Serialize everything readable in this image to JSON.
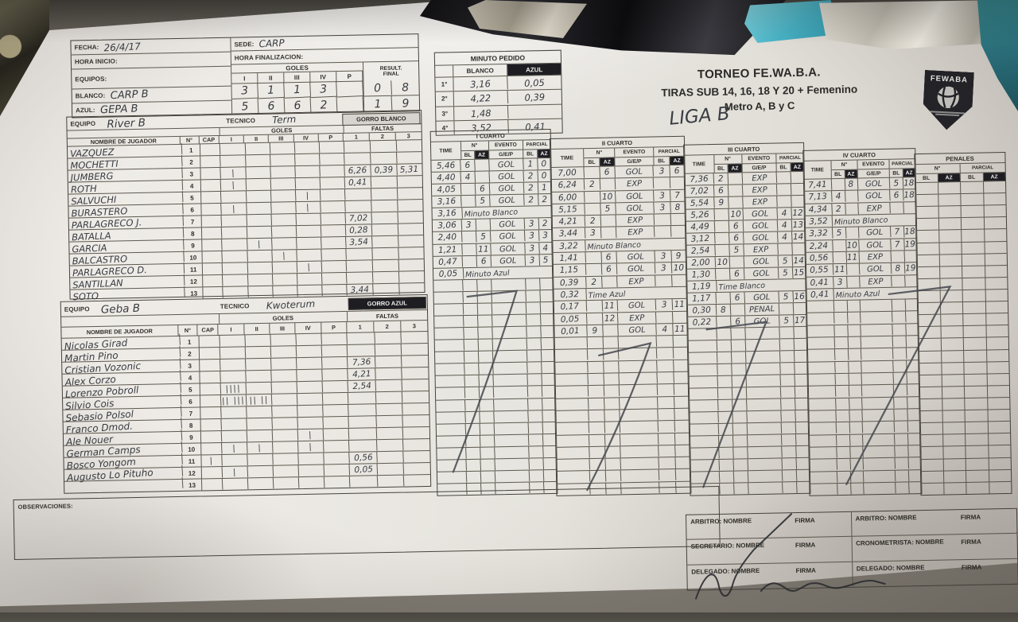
{
  "header": {
    "fecha_label": "FECHA:",
    "fecha": "26/4/17",
    "sede_label": "SEDE:",
    "sede": "CARP",
    "hora_inicio_label": "HORA INICIO:",
    "hora_fin_label": "HORA FINALIZACION:",
    "equipos_label": "EQUIPOS:",
    "goles_label": "GOLES",
    "result_label_1": "RESULT.",
    "result_label_2": "FINAL",
    "blanco_label": "BLANCO:",
    "azul_label": "AZUL:",
    "blanco_team": "CARP B",
    "azul_team": "GEPA B",
    "quarter_cols": [
      "I",
      "II",
      "III",
      "IV",
      "P"
    ],
    "blanco_goles": [
      "3",
      "1",
      "1",
      "3",
      ""
    ],
    "azul_goles": [
      "5",
      "6",
      "6",
      "2",
      ""
    ],
    "blanco_final": [
      "0",
      "8"
    ],
    "azul_final": [
      "1",
      "9"
    ]
  },
  "minuto_pedido": {
    "title": "MINUTO PEDIDO",
    "cols": [
      "BLANCO",
      "AZUL"
    ],
    "rows": [
      {
        "label": "1°",
        "blanco": "3,16",
        "azul": "0,05"
      },
      {
        "label": "2°",
        "blanco": "4,22",
        "azul": "0,39"
      },
      {
        "label": "3°",
        "blanco": "1,48",
        "azul": ""
      },
      {
        "label": "4°",
        "blanco": "3,52",
        "azul": "0,41"
      }
    ]
  },
  "title": {
    "line1": "TORNEO FE.WA.B.A.",
    "line2": "TIRAS SUB 14, 16, 18 Y 20 + Femenino",
    "line3": "Metro A, B y C",
    "handwritten": "LIGA B",
    "logo": "FEWABA"
  },
  "teams": [
    {
      "equipo_label": "EQUIPO",
      "equipo": "River B",
      "tecnico_label": "TECNICO",
      "tecnico": "Term",
      "gorro": "GORRO BLANCO",
      "goles_label": "GOLES",
      "faltas_label": "FALTAS",
      "headers": {
        "cols": [
          "NOMBRE DE JUGADOR",
          "N°",
          "CAP",
          "I",
          "II",
          "III",
          "IV",
          "P",
          "1",
          "2",
          "3"
        ]
      },
      "players": [
        {
          "n": "1",
          "name": "VAZQUEZ",
          "cap": "",
          "goles": [
            "",
            "",
            "",
            "",
            ""
          ],
          "faltas": [
            "",
            "",
            ""
          ]
        },
        {
          "n": "2",
          "name": "MOCHETTI",
          "cap": "",
          "goles": [
            "",
            "",
            "",
            "",
            ""
          ],
          "faltas": [
            "",
            "",
            ""
          ]
        },
        {
          "n": "3",
          "name": "JUMBERG",
          "cap": "",
          "goles": [
            "|",
            "",
            "",
            "",
            ""
          ],
          "faltas": [
            "6,26",
            "0,39",
            "5,31"
          ]
        },
        {
          "n": "4",
          "name": "ROTH",
          "cap": "",
          "goles": [
            "|",
            "",
            "",
            "",
            ""
          ],
          "faltas": [
            "0,41",
            "",
            ""
          ]
        },
        {
          "n": "5",
          "name": "SALVUCHI",
          "cap": "",
          "goles": [
            "",
            "",
            "",
            "|",
            ""
          ],
          "faltas": [
            "",
            "",
            ""
          ]
        },
        {
          "n": "6",
          "name": "BURASTERO",
          "cap": "",
          "goles": [
            "|",
            "",
            "",
            "|",
            ""
          ],
          "faltas": [
            "",
            "",
            ""
          ]
        },
        {
          "n": "7",
          "name": "PARLAGRECO J.",
          "cap": "",
          "goles": [
            "",
            "",
            "",
            "",
            ""
          ],
          "faltas": [
            "7,02",
            "",
            ""
          ]
        },
        {
          "n": "8",
          "name": "BATALLA",
          "cap": "",
          "goles": [
            "",
            "",
            "",
            "",
            ""
          ],
          "faltas": [
            "0,28",
            "",
            ""
          ]
        },
        {
          "n": "9",
          "name": "GARCIA",
          "cap": "",
          "goles": [
            "",
            "|",
            "",
            "",
            ""
          ],
          "faltas": [
            "3,54",
            "",
            ""
          ]
        },
        {
          "n": "10",
          "name": "BALCASTRO",
          "cap": "",
          "goles": [
            "",
            "",
            "|",
            "",
            ""
          ],
          "faltas": [
            "",
            "",
            ""
          ]
        },
        {
          "n": "11",
          "name": "PARLAGRECO D.",
          "cap": "",
          "goles": [
            "",
            "",
            "",
            "|",
            ""
          ],
          "faltas": [
            "",
            "",
            ""
          ]
        },
        {
          "n": "12",
          "name": "SANTILLAN",
          "cap": "",
          "goles": [
            "",
            "",
            "",
            "",
            ""
          ],
          "faltas": [
            "",
            "",
            ""
          ]
        },
        {
          "n": "13",
          "name": "SOTO",
          "cap": "",
          "goles": [
            "",
            "",
            "",
            "",
            ""
          ],
          "faltas": [
            "3,44",
            "",
            ""
          ]
        }
      ]
    },
    {
      "equipo_label": "EQUIPO",
      "equipo": "Geba B",
      "tecnico_label": "TECNICO",
      "tecnico": "Kwoterum",
      "gorro": "GORRO AZUL",
      "goles_label": "GOLES",
      "faltas_label": "FALTAS",
      "headers": {
        "cols": [
          "NOMBRE DE JUGADOR",
          "N°",
          "CAP",
          "I",
          "II",
          "III",
          "IV",
          "P",
          "1",
          "2",
          "3"
        ]
      },
      "players": [
        {
          "n": "1",
          "name": "Nicolas Girad",
          "cap": "",
          "goles": [
            "",
            "",
            "",
            "",
            ""
          ],
          "faltas": [
            "",
            "",
            ""
          ]
        },
        {
          "n": "2",
          "name": "Martin Pino",
          "cap": "",
          "goles": [
            "",
            "",
            "",
            "",
            ""
          ],
          "faltas": [
            "",
            "",
            ""
          ]
        },
        {
          "n": "3",
          "name": "Cristian Vozonic",
          "cap": "",
          "goles": [
            "",
            "",
            "",
            "",
            ""
          ],
          "faltas": [
            "7,36",
            "",
            ""
          ]
        },
        {
          "n": "4",
          "name": "Alex Corzo",
          "cap": "",
          "goles": [
            "",
            "",
            "",
            "",
            ""
          ],
          "faltas": [
            "4,21",
            "",
            ""
          ]
        },
        {
          "n": "5",
          "name": "Lorenzo Pobroll",
          "cap": "",
          "goles": [
            "||||",
            "",
            "",
            "",
            ""
          ],
          "faltas": [
            "2,54",
            "",
            ""
          ]
        },
        {
          "n": "6",
          "name": "Silvio Cois",
          "cap": "",
          "goles": [
            "|| |||",
            "|| ||",
            "",
            "",
            ""
          ],
          "faltas": [
            "",
            "",
            ""
          ]
        },
        {
          "n": "7",
          "name": "Sebasio Polsol",
          "cap": "",
          "goles": [
            "",
            "",
            "",
            "",
            ""
          ],
          "faltas": [
            "",
            "",
            ""
          ]
        },
        {
          "n": "8",
          "name": "Franco Dmod.",
          "cap": "",
          "goles": [
            "",
            "",
            "",
            "",
            ""
          ],
          "faltas": [
            "",
            "",
            ""
          ]
        },
        {
          "n": "9",
          "name": "Ale Nouer",
          "cap": "",
          "goles": [
            "",
            "",
            "",
            "|",
            ""
          ],
          "faltas": [
            "",
            "",
            ""
          ]
        },
        {
          "n": "10",
          "name": "German Camps",
          "cap": "",
          "goles": [
            "|",
            "|",
            "",
            "|",
            ""
          ],
          "faltas": [
            "",
            "",
            ""
          ]
        },
        {
          "n": "11",
          "name": "Bosco Yongom",
          "cap": "|",
          "goles": [
            "",
            "",
            "",
            "",
            ""
          ],
          "faltas": [
            "0,56",
            "",
            ""
          ]
        },
        {
          "n": "12",
          "name": "Augusto Lo Pituho",
          "cap": "",
          "goles": [
            "|",
            "",
            "",
            "",
            ""
          ],
          "faltas": [
            "0,05",
            "",
            ""
          ]
        },
        {
          "n": "13",
          "name": "",
          "cap": "",
          "goles": [
            "",
            "",
            "",
            "",
            ""
          ],
          "faltas": [
            "",
            "",
            ""
          ]
        }
      ]
    }
  ],
  "grid": {
    "labels": {
      "time": "TIME",
      "num": "N°",
      "evento": "EVENTO",
      "gep": "G/E/P",
      "parcial": "PARCIAL",
      "bl": "BL",
      "az": "AZ"
    },
    "quarters": [
      {
        "title": "I CUARTO",
        "rows": [
          {
            "time": "5,46",
            "bl": "6",
            "az": "",
            "ev": "GOL",
            "pbl": "1",
            "paz": "0"
          },
          {
            "time": "4,40",
            "bl": "4",
            "az": "",
            "ev": "GOL",
            "pbl": "2",
            "paz": "0"
          },
          {
            "time": "4,05",
            "bl": "",
            "az": "6",
            "ev": "GOL",
            "pbl": "2",
            "paz": "1"
          },
          {
            "time": "3,16",
            "bl": "",
            "az": "5",
            "ev": "GOL",
            "pbl": "2",
            "paz": "2"
          },
          {
            "time": "3,16",
            "wide": true,
            "ev": "Minuto Blanco"
          },
          {
            "time": "3,06",
            "bl": "3",
            "az": "",
            "ev": "GOL",
            "pbl": "3",
            "paz": "2"
          },
          {
            "time": "2,40",
            "bl": "",
            "az": "5",
            "ev": "GOL",
            "pbl": "3",
            "paz": "3"
          },
          {
            "time": "1,21",
            "bl": "",
            "az": "11",
            "ev": "GOL",
            "pbl": "3",
            "paz": "4"
          },
          {
            "time": "0,47",
            "bl": "",
            "az": "6",
            "ev": "GOL",
            "pbl": "3",
            "paz": "5"
          },
          {
            "time": "0,05",
            "wide": true,
            "ev": "Minuto Azul"
          }
        ]
      },
      {
        "title": "II CUARTO",
        "rows": [
          {
            "time": "7,00",
            "bl": "",
            "az": "6",
            "ev": "GOL",
            "pbl": "3",
            "paz": "6"
          },
          {
            "time": "6,24",
            "bl": "2",
            "az": "",
            "ev": "EXP",
            "pbl": "",
            "paz": ""
          },
          {
            "time": "6,00",
            "bl": "",
            "az": "10",
            "ev": "GOL",
            "pbl": "3",
            "paz": "7"
          },
          {
            "time": "5,15",
            "bl": "",
            "az": "5",
            "ev": "GOL",
            "pbl": "3",
            "paz": "8"
          },
          {
            "time": "4,21",
            "bl": "2",
            "az": "",
            "ev": "EXP",
            "pbl": "",
            "paz": ""
          },
          {
            "time": "3,44",
            "bl": "3",
            "az": "",
            "ev": "EXP",
            "pbl": "",
            "paz": ""
          },
          {
            "time": "3,22",
            "wide": true,
            "ev": "Minuto Blanco"
          },
          {
            "time": "1,41",
            "bl": "",
            "az": "6",
            "ev": "GOL",
            "pbl": "3",
            "paz": "9"
          },
          {
            "time": "1,15",
            "bl": "",
            "az": "6",
            "ev": "GOL",
            "pbl": "3",
            "paz": "10"
          },
          {
            "time": "0,39",
            "bl": "2",
            "az": "",
            "ev": "EXP",
            "pbl": "",
            "paz": ""
          },
          {
            "time": "0,32",
            "wide": true,
            "ev": "Time Azul"
          },
          {
            "time": "0,17",
            "bl": "",
            "az": "11",
            "ev": "GOL",
            "pbl": "3",
            "paz": "11"
          },
          {
            "time": "0,05",
            "bl": "",
            "az": "12",
            "ev": "EXP",
            "pbl": "",
            "paz": ""
          },
          {
            "time": "0,01",
            "bl": "9",
            "az": "",
            "ev": "GOL",
            "pbl": "4",
            "paz": "11"
          }
        ]
      },
      {
        "title": "III CUARTO",
        "rows": [
          {
            "time": "7,36",
            "bl": "2",
            "az": "",
            "ev": "EXP",
            "pbl": "",
            "paz": ""
          },
          {
            "time": "7,02",
            "bl": "6",
            "az": "",
            "ev": "EXP",
            "pbl": "",
            "paz": ""
          },
          {
            "time": "5,54",
            "bl": "9",
            "az": "",
            "ev": "EXP",
            "pbl": "",
            "paz": ""
          },
          {
            "time": "5,26",
            "bl": "",
            "az": "10",
            "ev": "GOL",
            "pbl": "4",
            "paz": "12"
          },
          {
            "time": "4,49",
            "bl": "",
            "az": "6",
            "ev": "GOL",
            "pbl": "4",
            "paz": "13"
          },
          {
            "time": "3,12",
            "bl": "",
            "az": "6",
            "ev": "GOL",
            "pbl": "4",
            "paz": "14"
          },
          {
            "time": "2,54",
            "bl": "",
            "az": "5",
            "ev": "EXP",
            "pbl": "",
            "paz": ""
          },
          {
            "time": "2,00",
            "bl": "10",
            "az": "",
            "ev": "GOL",
            "pbl": "5",
            "paz": "14"
          },
          {
            "time": "1,30",
            "bl": "",
            "az": "6",
            "ev": "GOL",
            "pbl": "5",
            "paz": "15"
          },
          {
            "time": "1,19",
            "wide": true,
            "ev": "Time Blanco"
          },
          {
            "time": "1,17",
            "bl": "",
            "az": "6",
            "ev": "GOL",
            "pbl": "5",
            "paz": "16"
          },
          {
            "time": "0,30",
            "bl": "8",
            "az": "",
            "ev": "PENAL",
            "pbl": "",
            "paz": ""
          },
          {
            "time": "0,22",
            "bl": "",
            "az": "6",
            "ev": "GOL",
            "pbl": "5",
            "paz": "17"
          }
        ]
      },
      {
        "title": "IV CUARTO",
        "rows": [
          {
            "time": "7,41",
            "bl": "",
            "az": "8",
            "ev": "GOL",
            "pbl": "5",
            "paz": "18"
          },
          {
            "time": "7,13",
            "bl": "4",
            "az": "",
            "ev": "GOL",
            "pbl": "6",
            "paz": "18"
          },
          {
            "time": "4,34",
            "bl": "2",
            "az": "",
            "ev": "EXP",
            "pbl": "",
            "paz": ""
          },
          {
            "time": "3,52",
            "wide": true,
            "ev": "Minuto Blanco"
          },
          {
            "time": "3,32",
            "bl": "5",
            "az": "",
            "ev": "GOL",
            "pbl": "7",
            "paz": "18"
          },
          {
            "time": "2,24",
            "bl": "",
            "az": "10",
            "ev": "GOL",
            "pbl": "7",
            "paz": "19"
          },
          {
            "time": "0,56",
            "bl": "",
            "az": "11",
            "ev": "EXP",
            "pbl": "",
            "paz": ""
          },
          {
            "time": "0,55",
            "bl": "11",
            "az": "",
            "ev": "GOL",
            "pbl": "8",
            "paz": "19"
          },
          {
            "time": "0,41",
            "bl": "3",
            "az": "",
            "ev": "EXP",
            "pbl": "",
            "paz": ""
          },
          {
            "time": "0,41",
            "wide": true,
            "ev": "Minuto Azul"
          }
        ]
      }
    ],
    "penales": {
      "title": "PENALES",
      "num": "N°",
      "parcial": "PARCIAL",
      "bl": "BL",
      "az": "AZ"
    }
  },
  "observaciones_label": "OBSERVACIONES:",
  "firmas": {
    "nombre": "NOMBRE",
    "firma": "FIRMA",
    "cells": [
      {
        "role": "ARBITRO"
      },
      {
        "role": "ARBITRO"
      },
      {
        "role": "SECRETARIO"
      },
      {
        "role": "CRONOMETRISTA"
      },
      {
        "role": "DELEGADO"
      },
      {
        "role": "DELEGADO"
      }
    ]
  }
}
